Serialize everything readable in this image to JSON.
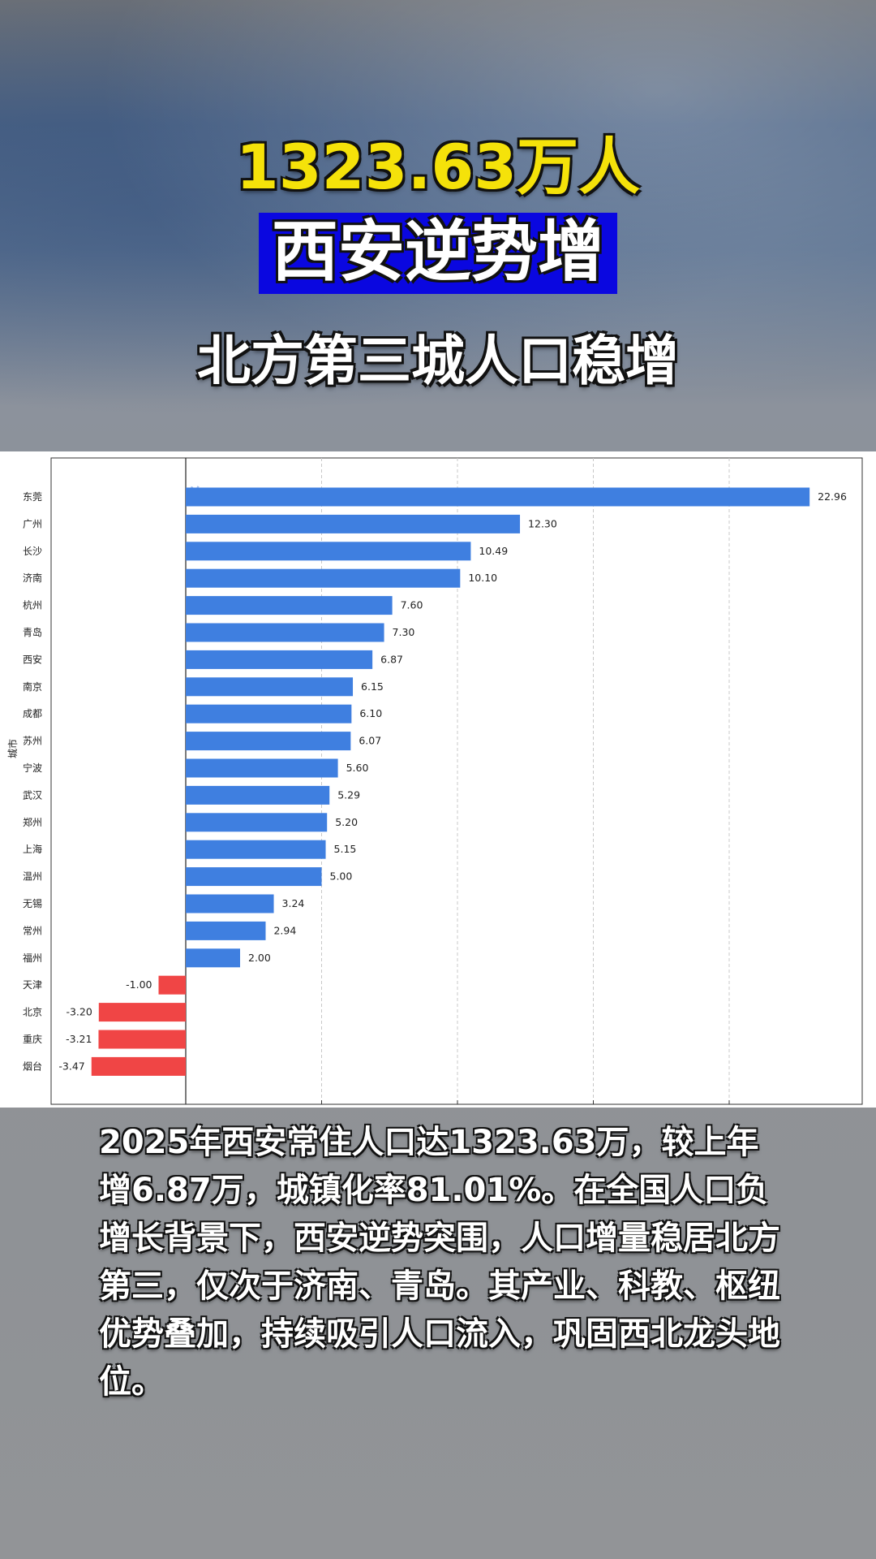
{
  "headline": {
    "number": "1323.63万人",
    "banner": "西安逆势增",
    "subtitle": "北方第三城人口稳增"
  },
  "caption": "2025年西安常住人口达1323.63万，较上年增6.87万，城镇化率81.01%。在全国人口负增长背景下，西安逆势突围，人口增量稳居北方第三，仅次于济南、青岛。其产业、科教、枢纽优势叠加，持续吸引人口流入，巩固西北龙头地位。",
  "watermark": "络",
  "colors": {
    "positive_bar": "#3f7fe0",
    "negative_bar": "#f04545",
    "banner_bg": "#0a07e0",
    "headline_yellow": "#f5e20a"
  },
  "chart_data": {
    "type": "bar",
    "orientation": "horizontal",
    "ylabel": "城市",
    "xlabel": "",
    "categories": [
      "东莞",
      "广州",
      "长沙",
      "济南",
      "杭州",
      "青岛",
      "西安",
      "南京",
      "成都",
      "苏州",
      "宁波",
      "武汉",
      "郑州",
      "上海",
      "温州",
      "无锡",
      "常州",
      "福州",
      "天津",
      "北京",
      "重庆",
      "烟台"
    ],
    "values": [
      22.96,
      12.3,
      10.49,
      10.1,
      7.6,
      7.3,
      6.87,
      6.15,
      6.1,
      6.07,
      5.6,
      5.29,
      5.2,
      5.15,
      5.0,
      3.24,
      2.94,
      2.0,
      -1.0,
      -3.2,
      -3.21,
      -3.47
    ],
    "value_labels": [
      "22.96",
      "12.30",
      "10.49",
      "10.10",
      "7.60",
      "7.30",
      "6.87",
      "6.15",
      "6.10",
      "6.07",
      "5.60",
      "5.29",
      "5.20",
      "5.15",
      "5.00",
      "3.24",
      "2.94",
      "2.00",
      "-1.00",
      "-3.20",
      "-3.21",
      "-3.47"
    ],
    "xlim": [
      -5,
      25
    ],
    "x_gridlines": [
      0,
      5,
      10,
      15,
      20
    ],
    "grid": "vertical dashed",
    "legend": "none"
  }
}
